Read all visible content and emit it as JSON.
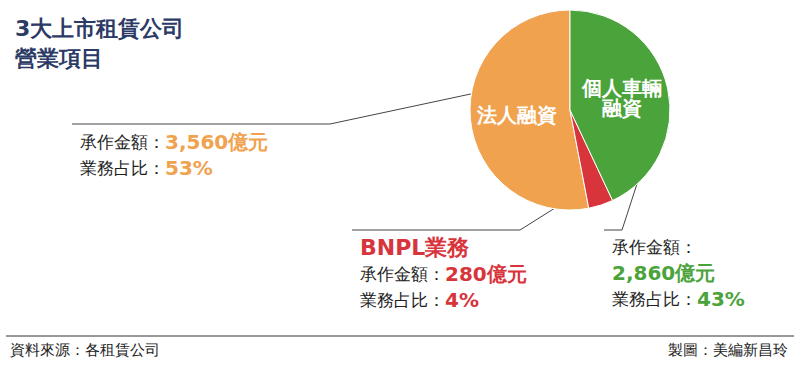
{
  "chart_data": {
    "type": "pie",
    "title": "3大上市租賃公司\n營業項目",
    "categories": [
      "法人融資",
      "BNPL業務",
      "個人車輛融資"
    ],
    "values": [
      53,
      4,
      43
    ],
    "value_labels": [
      "53%",
      "4%",
      "43%"
    ],
    "colors": [
      "#f0a24e",
      "#d8343c",
      "#4ba33b"
    ],
    "data_labels": true,
    "amount_caption": "承作金額：",
    "share_caption": "業務占比：",
    "amounts": [
      3560,
      280,
      2860
    ],
    "amount_labels": [
      "3,560億元",
      "280億元",
      "2,860億元"
    ],
    "source": "資料來源：各租賃公司",
    "credit": "製圖：美編新昌玲"
  }
}
